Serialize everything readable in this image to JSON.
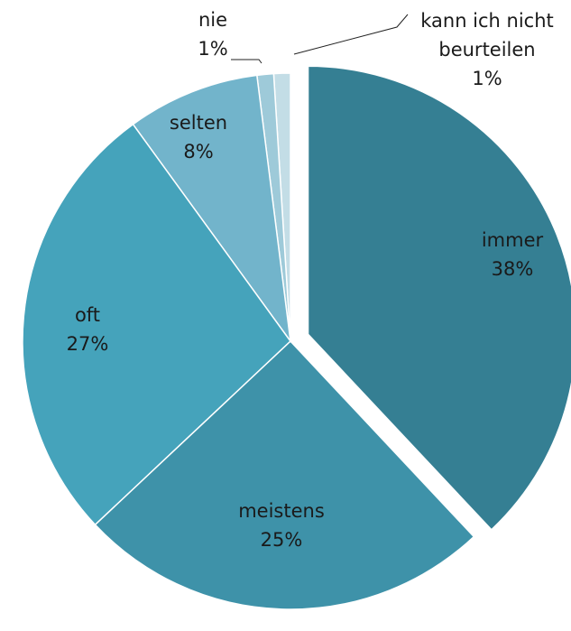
{
  "chart_data": {
    "type": "pie",
    "categories": [
      "immer",
      "meistens",
      "oft",
      "selten",
      "nie",
      "kann ich nicht beurteilen"
    ],
    "values": [
      38,
      25,
      27,
      8,
      1,
      1
    ],
    "value_labels": [
      "38%",
      "25%",
      "27%",
      "8%",
      "1%",
      "1%"
    ],
    "colors": [
      "#357f93",
      "#3e92a9",
      "#45a3bb",
      "#72b4cb",
      "#9ecad9",
      "#c3dde6"
    ],
    "exploded": [
      true,
      false,
      false,
      false,
      false,
      false
    ]
  }
}
